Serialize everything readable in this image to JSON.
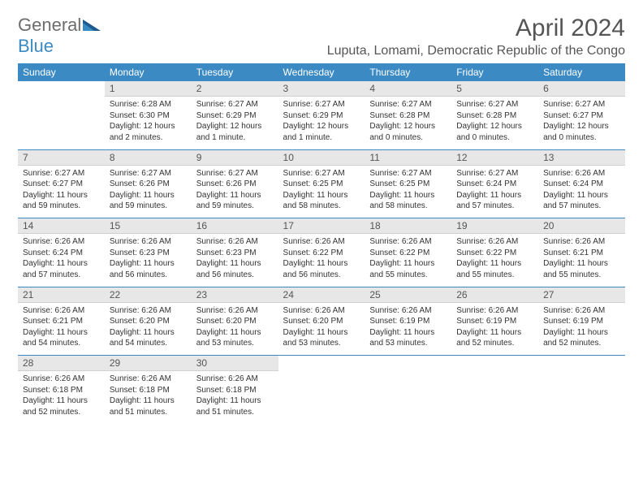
{
  "logo": {
    "part1": "General",
    "part2": "Blue"
  },
  "title": "April 2024",
  "location": "Luputa, Lomami, Democratic Republic of the Congo",
  "colors": {
    "accent": "#3b8ac4",
    "header_bg": "#3b8ac4",
    "daynum_bg": "#e7e7e7",
    "text": "#333333",
    "title_text": "#555555"
  },
  "weekdays": [
    "Sunday",
    "Monday",
    "Tuesday",
    "Wednesday",
    "Thursday",
    "Friday",
    "Saturday"
  ],
  "weeks": [
    [
      null,
      {
        "n": "1",
        "sr": "Sunrise: 6:28 AM",
        "ss": "Sunset: 6:30 PM",
        "d1": "Daylight: 12 hours",
        "d2": "and 2 minutes."
      },
      {
        "n": "2",
        "sr": "Sunrise: 6:27 AM",
        "ss": "Sunset: 6:29 PM",
        "d1": "Daylight: 12 hours",
        "d2": "and 1 minute."
      },
      {
        "n": "3",
        "sr": "Sunrise: 6:27 AM",
        "ss": "Sunset: 6:29 PM",
        "d1": "Daylight: 12 hours",
        "d2": "and 1 minute."
      },
      {
        "n": "4",
        "sr": "Sunrise: 6:27 AM",
        "ss": "Sunset: 6:28 PM",
        "d1": "Daylight: 12 hours",
        "d2": "and 0 minutes."
      },
      {
        "n": "5",
        "sr": "Sunrise: 6:27 AM",
        "ss": "Sunset: 6:28 PM",
        "d1": "Daylight: 12 hours",
        "d2": "and 0 minutes."
      },
      {
        "n": "6",
        "sr": "Sunrise: 6:27 AM",
        "ss": "Sunset: 6:27 PM",
        "d1": "Daylight: 12 hours",
        "d2": "and 0 minutes."
      }
    ],
    [
      {
        "n": "7",
        "sr": "Sunrise: 6:27 AM",
        "ss": "Sunset: 6:27 PM",
        "d1": "Daylight: 11 hours",
        "d2": "and 59 minutes."
      },
      {
        "n": "8",
        "sr": "Sunrise: 6:27 AM",
        "ss": "Sunset: 6:26 PM",
        "d1": "Daylight: 11 hours",
        "d2": "and 59 minutes."
      },
      {
        "n": "9",
        "sr": "Sunrise: 6:27 AM",
        "ss": "Sunset: 6:26 PM",
        "d1": "Daylight: 11 hours",
        "d2": "and 59 minutes."
      },
      {
        "n": "10",
        "sr": "Sunrise: 6:27 AM",
        "ss": "Sunset: 6:25 PM",
        "d1": "Daylight: 11 hours",
        "d2": "and 58 minutes."
      },
      {
        "n": "11",
        "sr": "Sunrise: 6:27 AM",
        "ss": "Sunset: 6:25 PM",
        "d1": "Daylight: 11 hours",
        "d2": "and 58 minutes."
      },
      {
        "n": "12",
        "sr": "Sunrise: 6:27 AM",
        "ss": "Sunset: 6:24 PM",
        "d1": "Daylight: 11 hours",
        "d2": "and 57 minutes."
      },
      {
        "n": "13",
        "sr": "Sunrise: 6:26 AM",
        "ss": "Sunset: 6:24 PM",
        "d1": "Daylight: 11 hours",
        "d2": "and 57 minutes."
      }
    ],
    [
      {
        "n": "14",
        "sr": "Sunrise: 6:26 AM",
        "ss": "Sunset: 6:24 PM",
        "d1": "Daylight: 11 hours",
        "d2": "and 57 minutes."
      },
      {
        "n": "15",
        "sr": "Sunrise: 6:26 AM",
        "ss": "Sunset: 6:23 PM",
        "d1": "Daylight: 11 hours",
        "d2": "and 56 minutes."
      },
      {
        "n": "16",
        "sr": "Sunrise: 6:26 AM",
        "ss": "Sunset: 6:23 PM",
        "d1": "Daylight: 11 hours",
        "d2": "and 56 minutes."
      },
      {
        "n": "17",
        "sr": "Sunrise: 6:26 AM",
        "ss": "Sunset: 6:22 PM",
        "d1": "Daylight: 11 hours",
        "d2": "and 56 minutes."
      },
      {
        "n": "18",
        "sr": "Sunrise: 6:26 AM",
        "ss": "Sunset: 6:22 PM",
        "d1": "Daylight: 11 hours",
        "d2": "and 55 minutes."
      },
      {
        "n": "19",
        "sr": "Sunrise: 6:26 AM",
        "ss": "Sunset: 6:22 PM",
        "d1": "Daylight: 11 hours",
        "d2": "and 55 minutes."
      },
      {
        "n": "20",
        "sr": "Sunrise: 6:26 AM",
        "ss": "Sunset: 6:21 PM",
        "d1": "Daylight: 11 hours",
        "d2": "and 55 minutes."
      }
    ],
    [
      {
        "n": "21",
        "sr": "Sunrise: 6:26 AM",
        "ss": "Sunset: 6:21 PM",
        "d1": "Daylight: 11 hours",
        "d2": "and 54 minutes."
      },
      {
        "n": "22",
        "sr": "Sunrise: 6:26 AM",
        "ss": "Sunset: 6:20 PM",
        "d1": "Daylight: 11 hours",
        "d2": "and 54 minutes."
      },
      {
        "n": "23",
        "sr": "Sunrise: 6:26 AM",
        "ss": "Sunset: 6:20 PM",
        "d1": "Daylight: 11 hours",
        "d2": "and 53 minutes."
      },
      {
        "n": "24",
        "sr": "Sunrise: 6:26 AM",
        "ss": "Sunset: 6:20 PM",
        "d1": "Daylight: 11 hours",
        "d2": "and 53 minutes."
      },
      {
        "n": "25",
        "sr": "Sunrise: 6:26 AM",
        "ss": "Sunset: 6:19 PM",
        "d1": "Daylight: 11 hours",
        "d2": "and 53 minutes."
      },
      {
        "n": "26",
        "sr": "Sunrise: 6:26 AM",
        "ss": "Sunset: 6:19 PM",
        "d1": "Daylight: 11 hours",
        "d2": "and 52 minutes."
      },
      {
        "n": "27",
        "sr": "Sunrise: 6:26 AM",
        "ss": "Sunset: 6:19 PM",
        "d1": "Daylight: 11 hours",
        "d2": "and 52 minutes."
      }
    ],
    [
      {
        "n": "28",
        "sr": "Sunrise: 6:26 AM",
        "ss": "Sunset: 6:18 PM",
        "d1": "Daylight: 11 hours",
        "d2": "and 52 minutes."
      },
      {
        "n": "29",
        "sr": "Sunrise: 6:26 AM",
        "ss": "Sunset: 6:18 PM",
        "d1": "Daylight: 11 hours",
        "d2": "and 51 minutes."
      },
      {
        "n": "30",
        "sr": "Sunrise: 6:26 AM",
        "ss": "Sunset: 6:18 PM",
        "d1": "Daylight: 11 hours",
        "d2": "and 51 minutes."
      },
      null,
      null,
      null,
      null
    ]
  ]
}
